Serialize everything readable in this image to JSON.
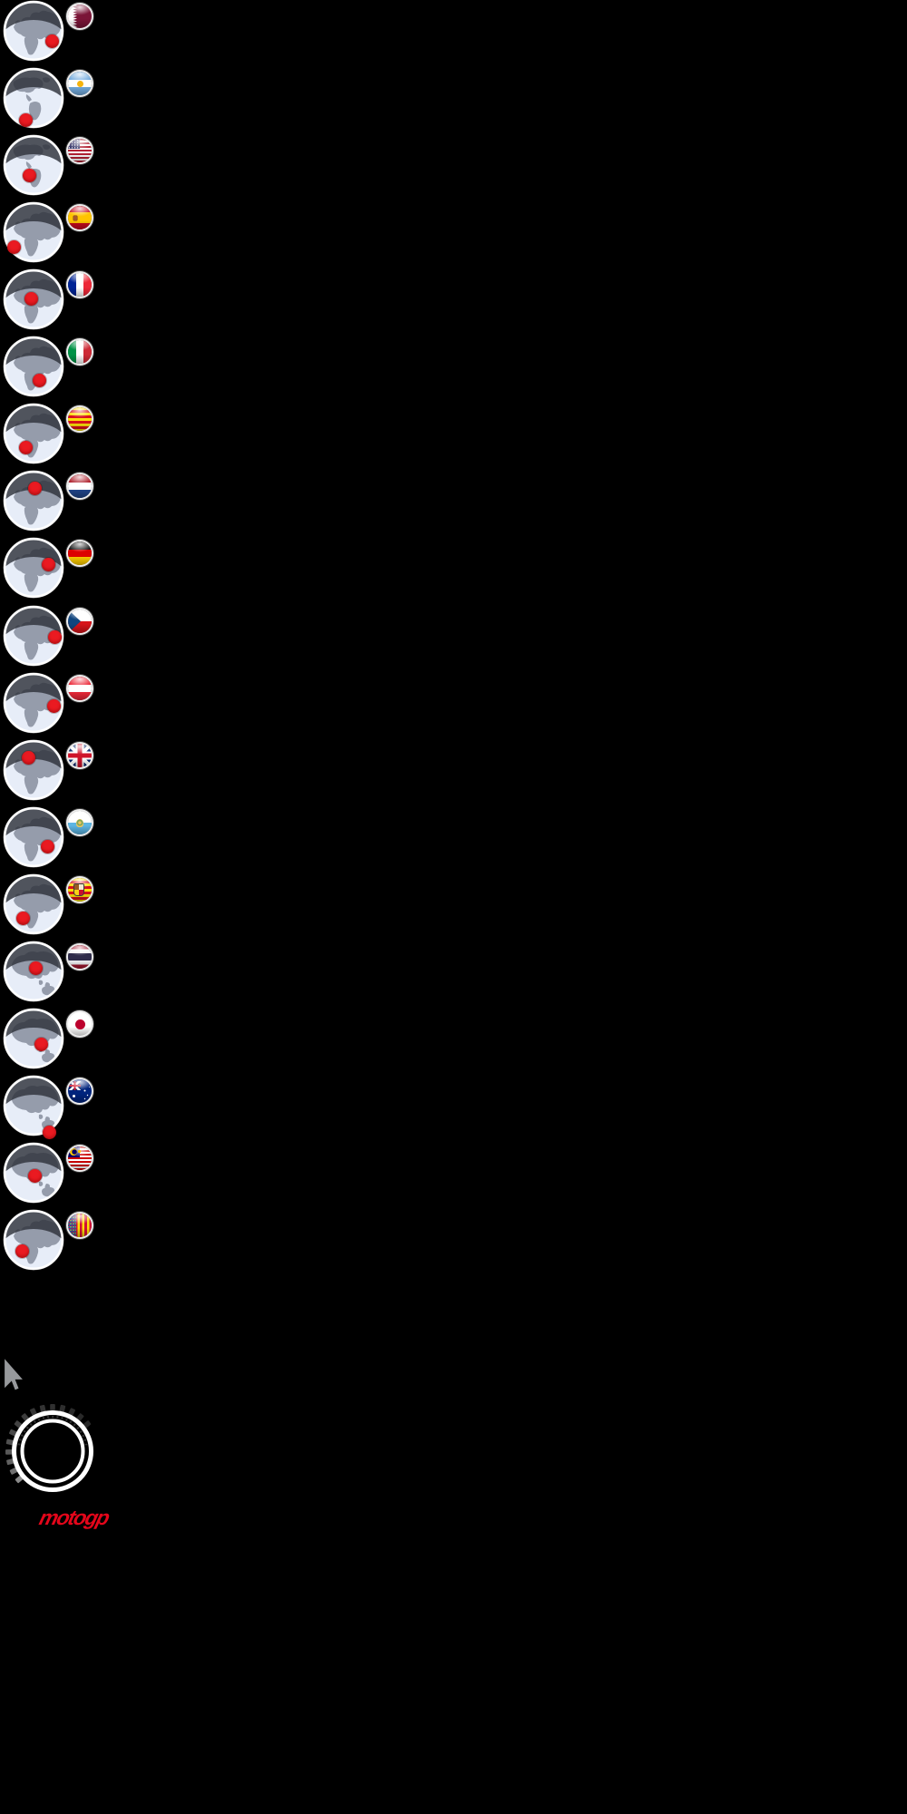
{
  "page": {
    "background_color": "#000000"
  },
  "events": [
    {
      "id": "qatar",
      "country": "Qatar",
      "globe": "europe",
      "marker_offset": [
        20,
        11
      ]
    },
    {
      "id": "argentina",
      "country": "Argentina",
      "globe": "americas",
      "marker_offset": [
        -9,
        24
      ]
    },
    {
      "id": "usa",
      "country": "United States",
      "globe": "americas",
      "marker_offset": [
        -5,
        11
      ]
    },
    {
      "id": "spain",
      "country": "Spain",
      "globe": "europe",
      "marker_offset": [
        -22,
        16
      ]
    },
    {
      "id": "france",
      "country": "France",
      "globe": "europe",
      "marker_offset": [
        -3,
        -1
      ]
    },
    {
      "id": "italy",
      "country": "Italy",
      "globe": "europe",
      "marker_offset": [
        6,
        15
      ]
    },
    {
      "id": "catalonia",
      "country": "Catalonia",
      "globe": "europe",
      "marker_offset": [
        -9,
        15
      ]
    },
    {
      "id": "netherlands",
      "country": "Netherlands",
      "globe": "europe",
      "marker_offset": [
        1,
        -14
      ]
    },
    {
      "id": "germany",
      "country": "Germany",
      "globe": "europe",
      "marker_offset": [
        16,
        -4
      ]
    },
    {
      "id": "czech-republic",
      "country": "Czech Republic",
      "globe": "europe",
      "marker_offset": [
        23,
        1
      ]
    },
    {
      "id": "austria",
      "country": "Austria",
      "globe": "europe",
      "marker_offset": [
        22,
        3
      ]
    },
    {
      "id": "great-britain",
      "country": "Great Britain",
      "globe": "europe",
      "marker_offset": [
        -6,
        -14
      ]
    },
    {
      "id": "san-marino",
      "country": "San Marino",
      "globe": "europe",
      "marker_offset": [
        15,
        10
      ]
    },
    {
      "id": "aragon",
      "country": "Aragon",
      "globe": "europe",
      "marker_offset": [
        -12,
        15
      ]
    },
    {
      "id": "thailand",
      "country": "Thailand",
      "globe": "asia",
      "marker_offset": [
        2,
        -4
      ]
    },
    {
      "id": "japan",
      "country": "Japan",
      "globe": "asia",
      "marker_offset": [
        8,
        6
      ]
    },
    {
      "id": "australia",
      "country": "Australia",
      "globe": "asia",
      "marker_offset": [
        17,
        29
      ]
    },
    {
      "id": "malaysia",
      "country": "Malaysia",
      "globe": "asia",
      "marker_offset": [
        1,
        3
      ]
    },
    {
      "id": "valencia",
      "country": "Valencia",
      "globe": "europe",
      "marker_offset": [
        -13,
        12
      ]
    }
  ],
  "marker_color": "#ea1a21",
  "cursor": {
    "type": "arrow-pointer",
    "color": "#97999c"
  },
  "spinner": {
    "style": "tachometer-double-ring",
    "ring_color": "#ffffff",
    "tick_color": "#4a4a4a"
  },
  "logo": {
    "text": "motogp",
    "color": "#e4061a"
  }
}
